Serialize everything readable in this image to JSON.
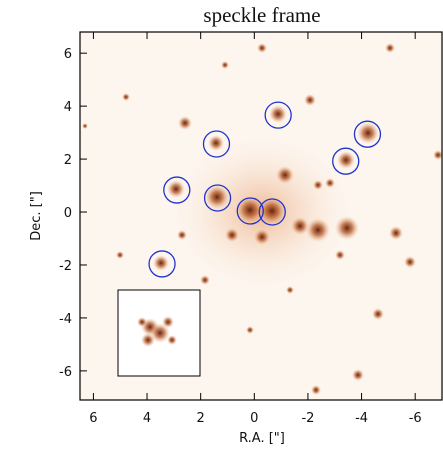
{
  "chart_data": {
    "type": "image",
    "title": "speckle frame",
    "x_label": "R.A. [\"]",
    "y_label": "Dec. [\"]",
    "xlim": [
      6.5,
      -7.0
    ],
    "ylim": [
      -7.1,
      6.8
    ],
    "xticks": [
      6,
      4,
      2,
      0,
      -2,
      -4,
      -6
    ],
    "yticks": [
      -6,
      -4,
      -2,
      0,
      2,
      4,
      6
    ],
    "circle_color": "#2233cc",
    "x": [
      -0.89,
      1.41,
      -4.22,
      -3.41,
      2.89,
      1.37,
      0.15,
      -0.67,
      3.44
    ],
    "values": [
      3.66,
      2.57,
      2.94,
      1.92,
      0.83,
      0.53,
      0.04,
      0.0,
      -1.96
    ]
  }
}
